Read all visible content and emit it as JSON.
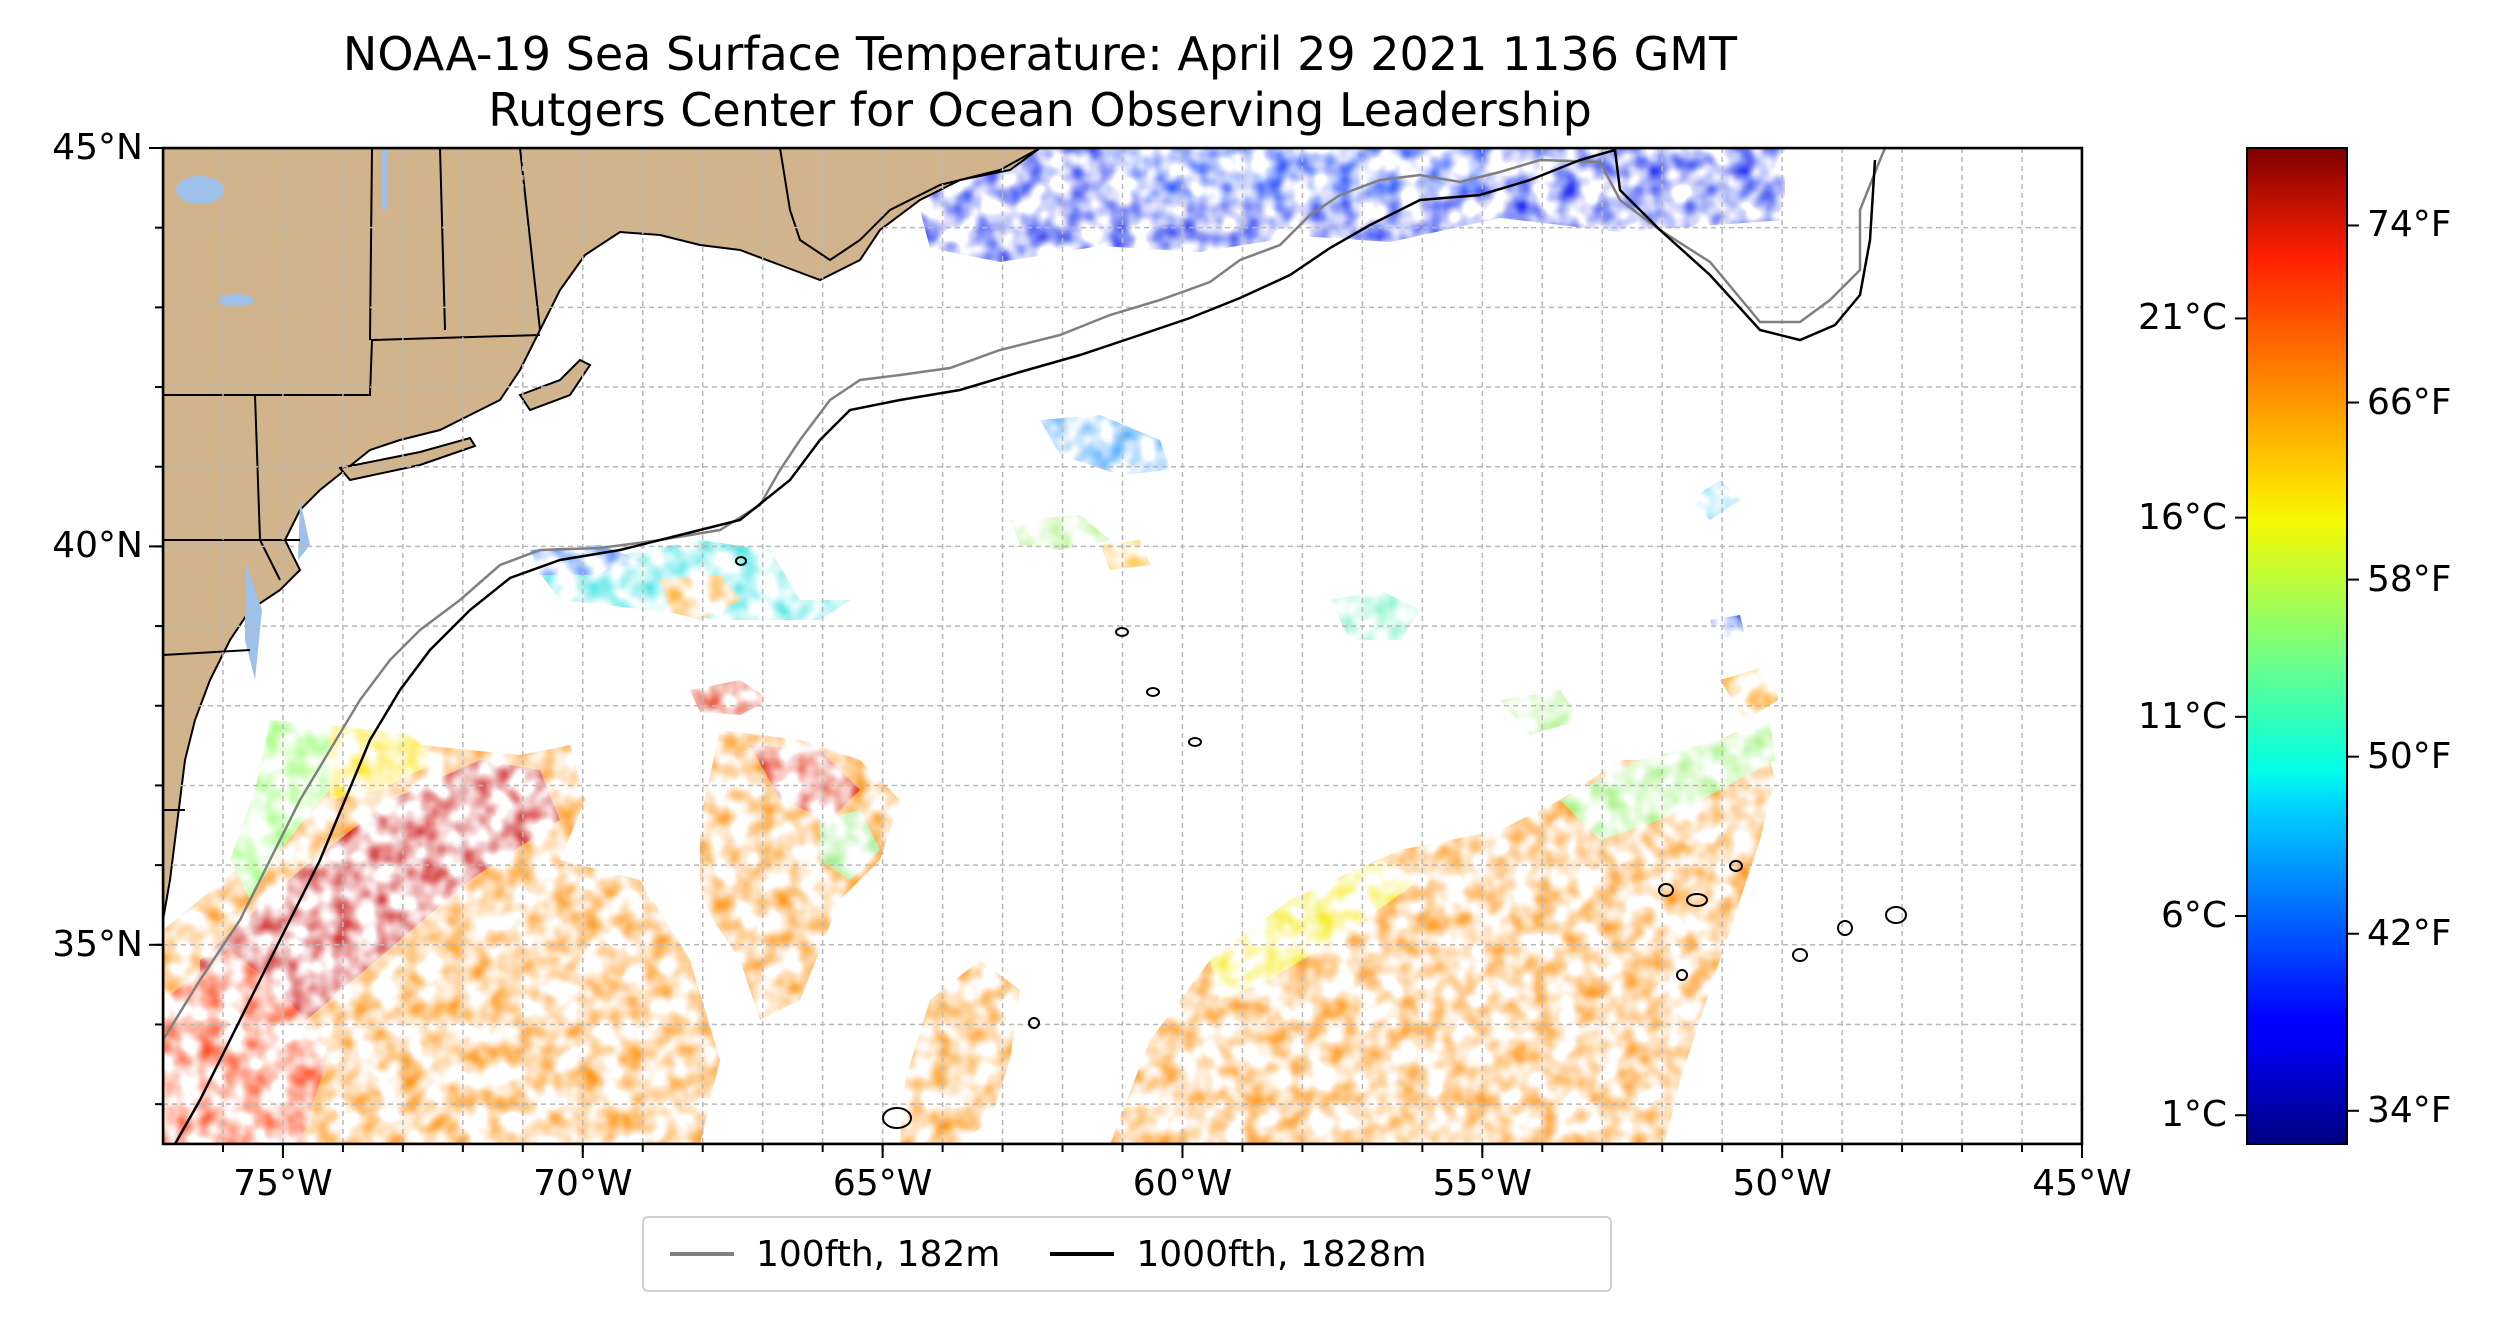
{
  "title": {
    "line1": "NOAA-19 Sea Surface Temperature: April 29 2021 1136 GMT",
    "line2": "Rutgers Center for Ocean Observing Leadership"
  },
  "map": {
    "extent": {
      "lon_min": -77,
      "lon_max": -45,
      "lat_min": 32.5,
      "lat_max": 45
    },
    "lat_ticks": [
      {
        "value": 45,
        "label": "45°N"
      },
      {
        "value": 40,
        "label": "40°N"
      },
      {
        "value": 35,
        "label": "35°N"
      }
    ],
    "lon_ticks": [
      {
        "value": -75,
        "label": "75°W"
      },
      {
        "value": -70,
        "label": "70°W"
      },
      {
        "value": -65,
        "label": "65°W"
      },
      {
        "value": -60,
        "label": "60°W"
      },
      {
        "value": -55,
        "label": "55°W"
      },
      {
        "value": -50,
        "label": "50°W"
      },
      {
        "value": -45,
        "label": "45°W"
      }
    ],
    "gridlines": true,
    "colors": {
      "land": "#d2b48c",
      "lakes": "#9fc0e8",
      "grid": "#b8b8b8"
    }
  },
  "colorbar": {
    "colormap": "jet",
    "fahrenheit_range": [
      32.5,
      77.5
    ],
    "fahrenheit_ticks": [
      {
        "value": 74,
        "label": "74°F"
      },
      {
        "value": 66,
        "label": "66°F"
      },
      {
        "value": 58,
        "label": "58°F"
      },
      {
        "value": 50,
        "label": "50°F"
      },
      {
        "value": 42,
        "label": "42°F"
      },
      {
        "value": 34,
        "label": "34°F"
      }
    ],
    "celsius_ticks": [
      {
        "value": 21,
        "label": "21°C"
      },
      {
        "value": 16,
        "label": "16°C"
      },
      {
        "value": 11,
        "label": "11°C"
      },
      {
        "value": 6,
        "label": "6°C"
      },
      {
        "value": 1,
        "label": "1°C"
      }
    ]
  },
  "legend": {
    "placement": "bottom-center",
    "entries": [
      {
        "label": "100fth, 182m",
        "color": "#808080"
      },
      {
        "label": "1000fth, 1828m",
        "color": "#000000"
      }
    ]
  }
}
